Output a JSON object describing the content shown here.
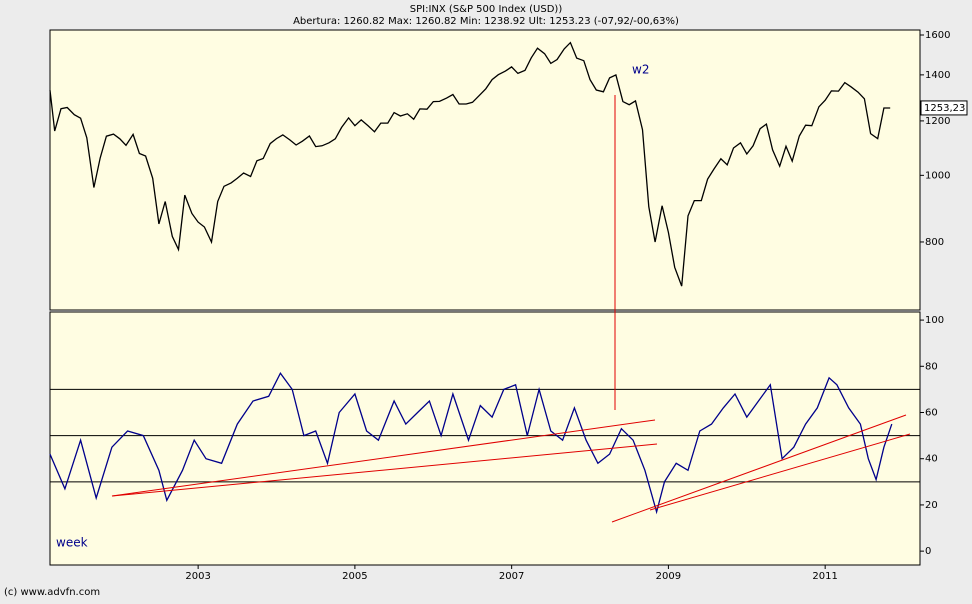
{
  "chart_data": [
    {
      "type": "line",
      "title": "SPI:INX (S&P 500 Index (USD))",
      "subtitle": "Abertura: 1260.82 Max: 1260.82 Min: 1238.92 Ult: 1253.23 (-07,92/-00,63%)",
      "annotation": "w2",
      "log_scale": true,
      "xlim": [
        2001.11,
        2012.21
      ],
      "ylim": [
        637,
        1627
      ],
      "yticks": [
        800,
        1000,
        1200,
        1400,
        1600
      ],
      "last_price": {
        "value": 1253.23,
        "label": "1253,23"
      },
      "x": [
        2001.11,
        2001.17,
        2001.25,
        2001.33,
        2001.42,
        2001.5,
        2001.58,
        2001.67,
        2001.75,
        2001.83,
        2001.92,
        2002.0,
        2002.08,
        2002.17,
        2002.25,
        2002.33,
        2002.42,
        2002.5,
        2002.58,
        2002.67,
        2002.75,
        2002.83,
        2002.92,
        2003.0,
        2003.08,
        2003.17,
        2003.25,
        2003.33,
        2003.42,
        2003.5,
        2003.58,
        2003.67,
        2003.75,
        2003.83,
        2003.92,
        2004.0,
        2004.08,
        2004.17,
        2004.25,
        2004.33,
        2004.42,
        2004.5,
        2004.58,
        2004.67,
        2004.75,
        2004.83,
        2004.92,
        2005.0,
        2005.08,
        2005.17,
        2005.25,
        2005.33,
        2005.42,
        2005.5,
        2005.58,
        2005.67,
        2005.75,
        2005.83,
        2005.92,
        2006.0,
        2006.08,
        2006.17,
        2006.25,
        2006.33,
        2006.42,
        2006.5,
        2006.58,
        2006.67,
        2006.75,
        2006.83,
        2006.92,
        2007.0,
        2007.08,
        2007.17,
        2007.25,
        2007.33,
        2007.42,
        2007.5,
        2007.58,
        2007.67,
        2007.75,
        2007.83,
        2007.92,
        2008.0,
        2008.08,
        2008.17,
        2008.25,
        2008.33,
        2008.42,
        2008.5,
        2008.58,
        2008.67,
        2008.75,
        2008.83,
        2008.92,
        2009.0,
        2009.08,
        2009.17,
        2009.25,
        2009.33,
        2009.42,
        2009.5,
        2009.58,
        2009.67,
        2009.75,
        2009.83,
        2009.92,
        2010.0,
        2010.08,
        2010.17,
        2010.25,
        2010.33,
        2010.42,
        2010.5,
        2010.58,
        2010.67,
        2010.75,
        2010.83,
        2010.92,
        2011.0,
        2011.08,
        2011.17,
        2011.25,
        2011.33,
        2011.42,
        2011.5,
        2011.58,
        2011.67,
        2011.75,
        2011.83
      ],
      "series": [
        {
          "color": "#000000",
          "values": [
            1330,
            1160,
            1250,
            1255,
            1225,
            1211,
            1134,
            960,
            1060,
            1140,
            1148,
            1130,
            1106,
            1147,
            1076,
            1067,
            990,
            850,
            916,
            815,
            780,
            936,
            880,
            855,
            841,
            800,
            916,
            964,
            975,
            990,
            1008,
            996,
            1050,
            1058,
            1112,
            1131,
            1145,
            1126,
            1107,
            1121,
            1141,
            1101,
            1104,
            1115,
            1130,
            1174,
            1212,
            1181,
            1204,
            1180,
            1157,
            1191,
            1191,
            1234,
            1220,
            1229,
            1207,
            1249,
            1248,
            1280,
            1281,
            1295,
            1311,
            1270,
            1270,
            1277,
            1304,
            1336,
            1378,
            1401,
            1418,
            1438,
            1407,
            1421,
            1482,
            1531,
            1503,
            1455,
            1474,
            1527,
            1560,
            1481,
            1468,
            1378,
            1331,
            1323,
            1386,
            1400,
            1280,
            1267,
            1283,
            1165,
            900,
            800,
            903,
            826,
            735,
            690,
            873,
            919,
            919,
            987,
            1021,
            1057,
            1036,
            1096,
            1115,
            1074,
            1104,
            1169,
            1187,
            1089,
            1031,
            1102,
            1049,
            1141,
            1183,
            1181,
            1258,
            1286,
            1327,
            1326,
            1364,
            1345,
            1321,
            1292,
            1150,
            1131,
            1253,
            1253
          ]
        }
      ]
    },
    {
      "type": "line",
      "annotation": "week",
      "xlim": [
        2001.11,
        2012.21
      ],
      "ylim": [
        -6,
        103.5
      ],
      "yticks": [
        0,
        20,
        40,
        60,
        80,
        100
      ],
      "reference_lines": [
        30,
        50,
        70
      ],
      "xticks": [
        2003,
        2005,
        2007,
        2009,
        2011
      ],
      "x": [
        2001.11,
        2001.3,
        2001.5,
        2001.7,
        2001.9,
        2002.1,
        2002.3,
        2002.5,
        2002.6,
        2002.8,
        2002.95,
        2003.1,
        2003.3,
        2003.5,
        2003.7,
        2003.9,
        2004.05,
        2004.2,
        2004.35,
        2004.5,
        2004.65,
        2004.8,
        2005.0,
        2005.15,
        2005.3,
        2005.5,
        2005.65,
        2005.8,
        2005.95,
        2006.1,
        2006.25,
        2006.45,
        2006.6,
        2006.75,
        2006.9,
        2007.05,
        2007.2,
        2007.35,
        2007.5,
        2007.65,
        2007.8,
        2007.95,
        2008.1,
        2008.25,
        2008.4,
        2008.55,
        2008.7,
        2008.85,
        2008.95,
        2009.1,
        2009.25,
        2009.4,
        2009.55,
        2009.7,
        2009.85,
        2010.0,
        2010.15,
        2010.3,
        2010.45,
        2010.6,
        2010.75,
        2010.9,
        2011.05,
        2011.15,
        2011.3,
        2011.45,
        2011.55,
        2011.65,
        2011.75,
        2011.85
      ],
      "series": [
        {
          "color": "#00008b",
          "values": [
            42,
            27,
            48,
            23,
            45,
            52,
            50,
            35,
            22,
            35,
            48,
            40,
            38,
            55,
            65,
            67,
            77,
            70,
            50,
            52,
            38,
            60,
            68,
            52,
            48,
            65,
            55,
            60,
            65,
            50,
            68,
            48,
            63,
            58,
            70,
            72,
            50,
            70,
            52,
            48,
            62,
            48,
            38,
            42,
            53,
            48,
            35,
            17,
            30,
            38,
            35,
            52,
            55,
            62,
            68,
            58,
            65,
            72,
            40,
            45,
            55,
            62,
            75,
            72,
            62,
            55,
            40,
            31,
            45,
            55
          ]
        }
      ]
    }
  ],
  "footer": "(c) www.advfn.com"
}
